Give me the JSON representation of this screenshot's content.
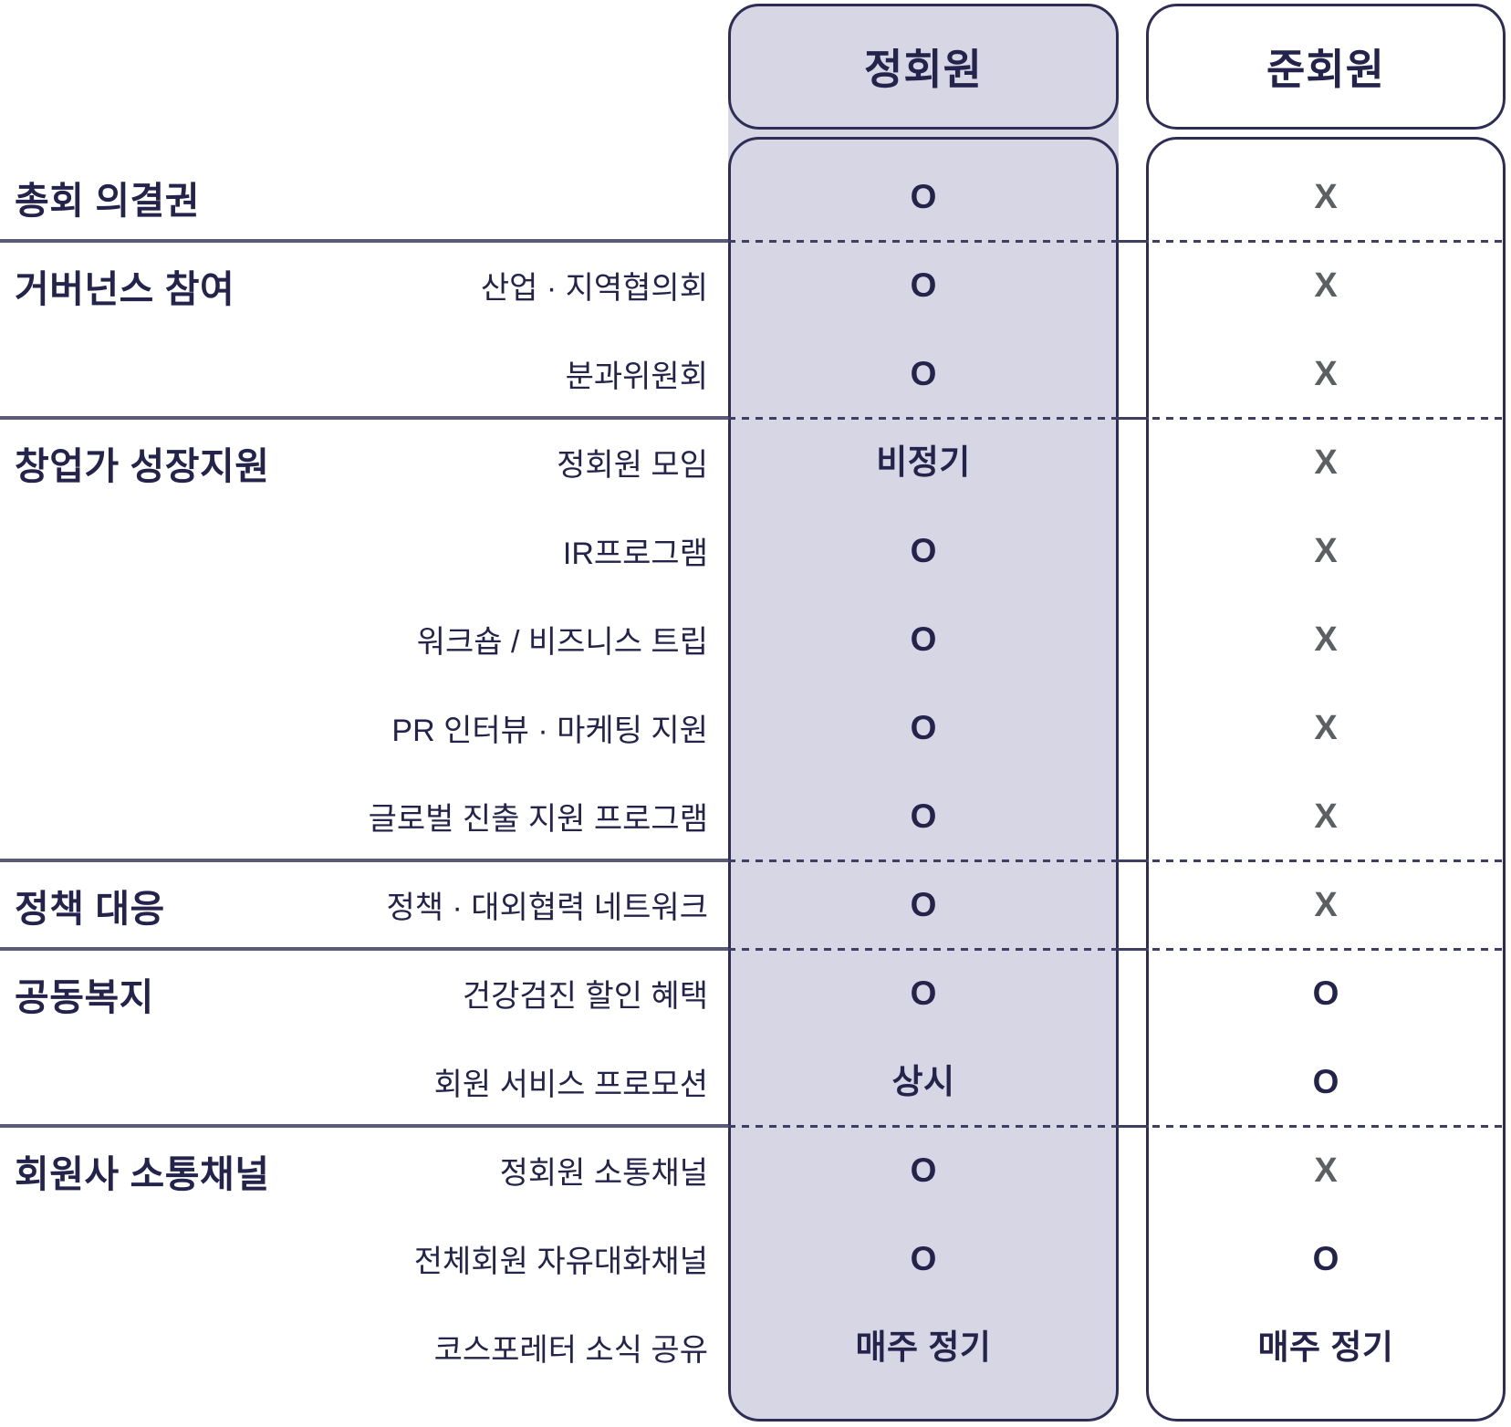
{
  "table": {
    "columns": [
      {
        "id": "regular",
        "label": "정회원"
      },
      {
        "id": "associate",
        "label": "준회원"
      }
    ],
    "marks": {
      "yes": "O",
      "no": "X"
    },
    "sections": [
      {
        "category": "총회 의결권",
        "rows": [
          {
            "item": "",
            "regular": "O",
            "associate": "X"
          }
        ]
      },
      {
        "category": "거버넌스 참여",
        "rows": [
          {
            "item": "산업 · 지역협의회",
            "regular": "O",
            "associate": "X"
          },
          {
            "item": "분과위원회",
            "regular": "O",
            "associate": "X"
          }
        ]
      },
      {
        "category": "창업가 성장지원",
        "rows": [
          {
            "item": "정회원 모임",
            "regular": "비정기",
            "associate": "X"
          },
          {
            "item": "IR프로그램",
            "regular": "O",
            "associate": "X"
          },
          {
            "item": "워크숍 / 비즈니스 트립",
            "regular": "O",
            "associate": "X"
          },
          {
            "item": "PR 인터뷰 · 마케팅 지원",
            "regular": "O",
            "associate": "X"
          },
          {
            "item": "글로벌 진출 지원 프로그램",
            "regular": "O",
            "associate": "X"
          }
        ]
      },
      {
        "category": "정책 대응",
        "rows": [
          {
            "item": "정책 · 대외협력 네트워크",
            "regular": "O",
            "associate": "X"
          }
        ]
      },
      {
        "category": "공동복지",
        "rows": [
          {
            "item": "건강검진 할인 혜택",
            "regular": "O",
            "associate": "O"
          },
          {
            "item": "회원 서비스 프로모션",
            "regular": "상시",
            "associate": "O"
          }
        ]
      },
      {
        "category": "회원사 소통채널",
        "rows": [
          {
            "item": "정회원 소통채널",
            "regular": "O",
            "associate": "X"
          },
          {
            "item": "전체회원 자유대화채널",
            "regular": "O",
            "associate": "O"
          },
          {
            "item": "코스포레터 소식 공유",
            "regular": "매주 정기",
            "associate": "매주 정기"
          }
        ]
      }
    ],
    "colors": {
      "highlight_fill": "#d6d6e4",
      "border_navy": "#2d2d55",
      "text_navy": "#23234b",
      "mark_no_gray": "#5c6063",
      "separator_solid": "#5b5b77",
      "separator_dash": "#3f3f66"
    }
  }
}
